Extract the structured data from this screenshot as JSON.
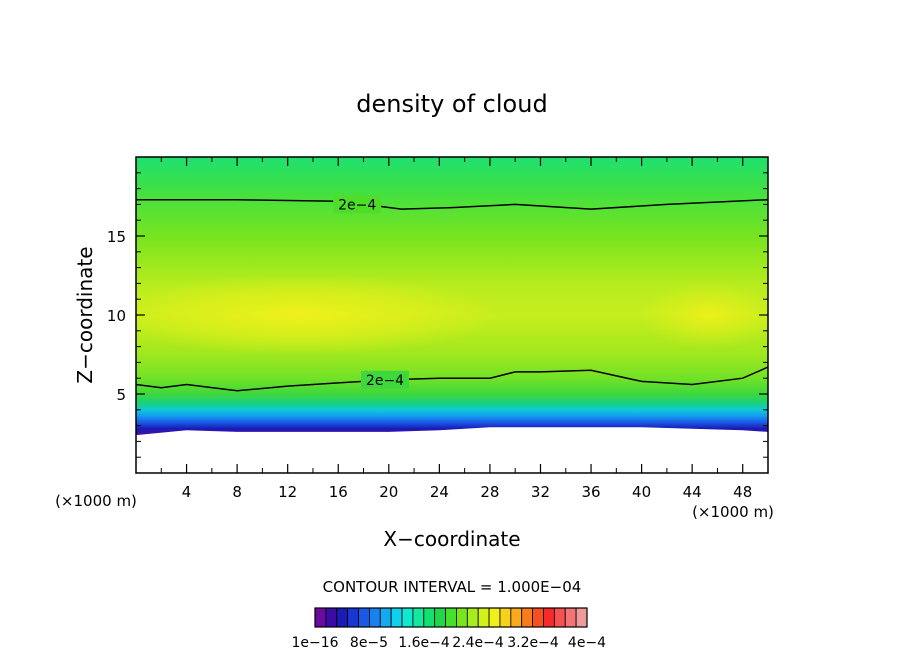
{
  "chart_data": {
    "type": "heatmap",
    "title": "density of cloud",
    "xlabel": "X−coordinate",
    "ylabel": "Z−coordinate",
    "x_unit_left": "(×1000 m)",
    "x_unit_right": "(×1000 m)",
    "xlim": [
      0,
      50
    ],
    "ylim": [
      0,
      20
    ],
    "x_ticks": [
      4,
      8,
      12,
      16,
      20,
      24,
      28,
      32,
      36,
      40,
      44,
      48
    ],
    "y_ticks": [
      5,
      10,
      15
    ],
    "contour_interval_label": "CONTOUR INTERVAL = 1.000E−04",
    "contour_labels": [
      {
        "text": "2e−4",
        "x": 17.5,
        "z": 17.0
      },
      {
        "text": "2e−4",
        "x": 19.7,
        "z": 5.9
      }
    ],
    "contour_upper": {
      "value": "2e−4",
      "x": [
        0,
        8,
        16,
        21,
        25,
        30,
        36,
        42,
        50
      ],
      "z": [
        17.3,
        17.3,
        17.2,
        16.7,
        16.8,
        17.0,
        16.7,
        17.0,
        17.3
      ]
    },
    "contour_lower": {
      "value": "2e−4",
      "x": [
        0,
        2,
        4,
        8,
        12,
        16,
        20,
        24,
        28,
        30,
        32,
        36,
        40,
        44,
        48,
        50
      ],
      "z": [
        5.6,
        5.4,
        5.6,
        5.2,
        5.5,
        5.7,
        5.9,
        6.0,
        6.0,
        6.4,
        6.4,
        6.5,
        5.8,
        5.6,
        6.0,
        6.7
      ]
    },
    "cloud_base": {
      "x": [
        0,
        4,
        8,
        12,
        16,
        20,
        24,
        28,
        32,
        36,
        40,
        44,
        48,
        50
      ],
      "z": [
        2.4,
        2.7,
        2.6,
        2.6,
        2.6,
        2.6,
        2.7,
        2.9,
        2.9,
        2.9,
        2.9,
        2.8,
        2.7,
        2.6
      ]
    },
    "colorbar": {
      "colors": [
        "#6a0aa0",
        "#3a0ca6",
        "#1a1ab4",
        "#1a36d2",
        "#1a58e6",
        "#1a80ee",
        "#14aaf0",
        "#10d0f0",
        "#10e8d0",
        "#14e8a0",
        "#14e070",
        "#1ed84a",
        "#46e02c",
        "#78e61e",
        "#a6ec1e",
        "#d2f01a",
        "#f0f01a",
        "#f6d21a",
        "#f8aa1c",
        "#f87c1e",
        "#f6501e",
        "#f62a2a",
        "#f65050",
        "#f27474",
        "#f09a9a"
      ],
      "tick_labels": [
        "1e−16",
        "8e−5",
        "1.6e−4",
        "2.4e−4",
        "3.2e−4",
        "4e−4"
      ]
    }
  }
}
